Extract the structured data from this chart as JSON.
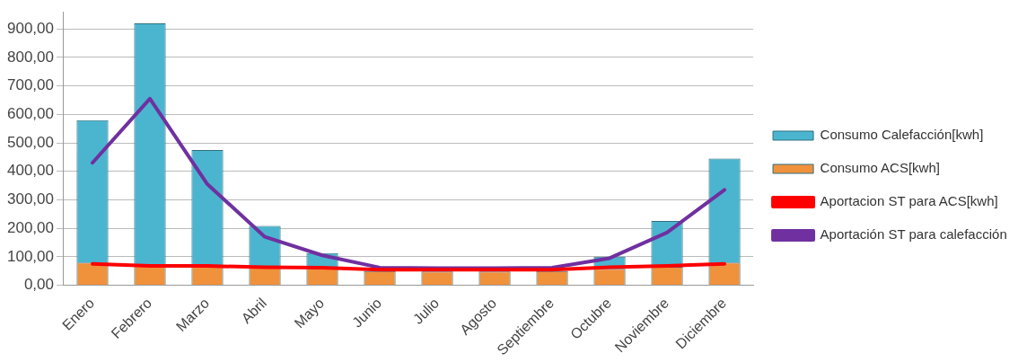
{
  "chart_data": {
    "type": "bar",
    "stacked": true,
    "categories": [
      "Enero",
      "Febrero",
      "Marzo",
      "Abril",
      "Mayo",
      "Junio",
      "Julio",
      "Agosto",
      "Septiembre",
      "Octubre",
      "Noviembre",
      "Diciembre"
    ],
    "series": [
      {
        "name": "Consumo ACS[kwh]",
        "color": "#f0913c",
        "values": [
          80,
          70,
          70,
          62,
          60,
          50,
          48,
          48,
          50,
          58,
          65,
          80
        ]
      },
      {
        "name": "Consumo Calefacción[kwh]",
        "color": "#4bb5cf",
        "values": [
          500,
          850,
          405,
          146,
          53,
          0,
          0,
          0,
          0,
          42,
          161,
          365
        ]
      },
      {
        "name": "Aportacion ST para ACS[kwh]",
        "type": "line",
        "color": "#ff0000",
        "values": [
          75,
          68,
          68,
          63,
          62,
          55,
          55,
          55,
          55,
          63,
          68,
          75
        ]
      },
      {
        "name": "Aportación ST para calefacción",
        "type": "line",
        "color": "#7030a0",
        "values": [
          430,
          655,
          355,
          170,
          105,
          62,
          60,
          60,
          62,
          95,
          185,
          335
        ]
      }
    ],
    "ylim": [
      0,
      960
    ],
    "yticks": [
      {
        "value": 0,
        "label": "0,00"
      },
      {
        "value": 100,
        "label": "100,00"
      },
      {
        "value": 200,
        "label": "200,00"
      },
      {
        "value": 300,
        "label": "300,00"
      },
      {
        "value": 400,
        "label": "400,00"
      },
      {
        "value": 500,
        "label": "500,00"
      },
      {
        "value": 600,
        "label": "600,00"
      },
      {
        "value": 700,
        "label": "700,00"
      },
      {
        "value": 800,
        "label": "800,00"
      },
      {
        "value": 900,
        "label": "900,00"
      }
    ],
    "grid": "y",
    "legend": "right",
    "marker": "none"
  }
}
